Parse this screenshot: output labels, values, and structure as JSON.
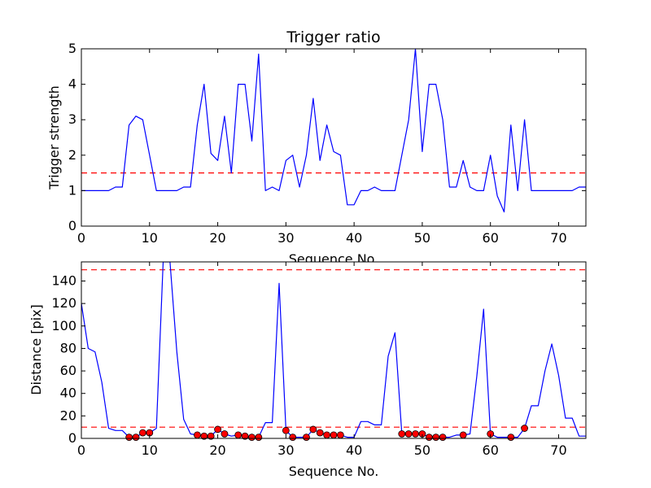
{
  "chart_data": [
    {
      "type": "line",
      "title": "Trigger ratio",
      "xlabel": "Sequence No.",
      "ylabel": "Trigger strength",
      "xlim": [
        0,
        74
      ],
      "ylim": [
        0,
        5
      ],
      "xticks": [
        0,
        10,
        20,
        30,
        40,
        50,
        60,
        70
      ],
      "yticks": [
        0,
        1,
        2,
        3,
        4,
        5
      ],
      "grid": false,
      "series": [
        {
          "color": "#0000ff",
          "x": [
            0,
            1,
            2,
            3,
            4,
            5,
            6,
            7,
            8,
            9,
            10,
            11,
            12,
            13,
            14,
            15,
            16,
            17,
            18,
            19,
            20,
            21,
            22,
            23,
            24,
            25,
            26,
            27,
            28,
            29,
            30,
            31,
            32,
            33,
            34,
            35,
            36,
            37,
            38,
            39,
            40,
            41,
            42,
            43,
            44,
            45,
            46,
            47,
            48,
            49,
            50,
            51,
            52,
            53,
            54,
            55,
            56,
            57,
            58,
            59,
            60,
            61,
            62,
            63,
            64,
            65,
            66,
            67,
            68,
            69,
            70,
            71,
            72,
            73,
            74
          ],
          "y": [
            1.0,
            1.0,
            1.0,
            1.0,
            1.0,
            1.1,
            1.1,
            2.85,
            3.1,
            3.0,
            2.0,
            1.0,
            1.0,
            1.0,
            1.0,
            1.1,
            1.1,
            2.85,
            4.0,
            2.05,
            1.85,
            3.1,
            1.5,
            4.0,
            4.0,
            2.4,
            4.85,
            1.0,
            1.1,
            1.0,
            1.85,
            2.0,
            1.1,
            2.0,
            3.6,
            1.85,
            2.85,
            2.1,
            2.0,
            0.6,
            0.6,
            1.0,
            1.0,
            1.1,
            1.0,
            1.0,
            1.0,
            2.0,
            3.0,
            5.0,
            2.1,
            4.0,
            4.0,
            3.0,
            1.1,
            1.1,
            1.85,
            1.1,
            1.0,
            1.0,
            2.0,
            0.85,
            0.4,
            2.85,
            1.0,
            3.0,
            1.0,
            1.0,
            1.0,
            1.0,
            1.0,
            1.0,
            1.0,
            1.1,
            1.1
          ]
        }
      ],
      "threshold_lines": [
        {
          "y": 1.5,
          "color": "#ff0000",
          "style": "dashed"
        }
      ]
    },
    {
      "type": "line",
      "title": "",
      "xlabel": "Sequence No.",
      "ylabel": "Distance [pix]",
      "xlim": [
        0,
        74
      ],
      "ylim": [
        0,
        157
      ],
      "xticks": [
        0,
        10,
        20,
        30,
        40,
        50,
        60,
        70
      ],
      "yticks": [
        0,
        20,
        40,
        60,
        80,
        100,
        120,
        140
      ],
      "grid": false,
      "series": [
        {
          "color": "#0000ff",
          "x": [
            0,
            1,
            2,
            3,
            4,
            5,
            6,
            7,
            8,
            9,
            10,
            11,
            12,
            13,
            14,
            15,
            16,
            17,
            18,
            19,
            20,
            21,
            22,
            23,
            24,
            25,
            26,
            27,
            28,
            29,
            30,
            31,
            32,
            33,
            34,
            35,
            36,
            37,
            38,
            39,
            40,
            41,
            42,
            43,
            44,
            45,
            46,
            47,
            48,
            49,
            50,
            51,
            52,
            53,
            54,
            55,
            56,
            57,
            58,
            59,
            60,
            61,
            62,
            63,
            64,
            65,
            66,
            67,
            68,
            69,
            70,
            71,
            72,
            73,
            74
          ],
          "y": [
            120,
            80,
            77,
            50,
            9,
            7,
            7,
            1,
            1,
            5,
            5,
            9,
            157,
            157,
            77,
            17,
            4,
            3,
            2,
            2,
            8,
            4,
            2,
            3,
            2,
            1,
            1,
            14,
            14,
            138,
            7,
            1,
            1,
            1,
            8,
            5,
            3,
            3,
            3,
            1,
            1,
            15,
            15,
            12,
            12,
            73,
            94,
            4,
            4,
            4,
            4,
            1,
            1,
            1,
            1,
            3,
            3,
            4,
            55,
            115,
            4,
            1,
            1,
            1,
            1,
            9,
            29,
            29,
            60,
            84,
            56,
            18,
            18,
            2,
            2
          ]
        }
      ],
      "markers": {
        "color": "#ff0000",
        "x": [
          7,
          8,
          9,
          10,
          17,
          18,
          19,
          20,
          21,
          23,
          24,
          25,
          26,
          30,
          31,
          33,
          34,
          35,
          36,
          37,
          38,
          47,
          48,
          49,
          50,
          51,
          52,
          53,
          56,
          60,
          63,
          65
        ],
        "y": [
          1,
          1,
          5,
          5,
          3,
          2,
          2,
          8,
          4,
          3,
          2,
          1,
          1,
          7,
          1,
          1,
          8,
          5,
          3,
          3,
          3,
          4,
          4,
          4,
          4,
          1,
          1,
          1,
          3,
          4,
          1,
          9
        ]
      },
      "threshold_lines": [
        {
          "y": 10,
          "color": "#ff0000",
          "style": "dashed"
        },
        {
          "y": 150,
          "color": "#ff0000",
          "style": "dashed"
        }
      ]
    }
  ]
}
